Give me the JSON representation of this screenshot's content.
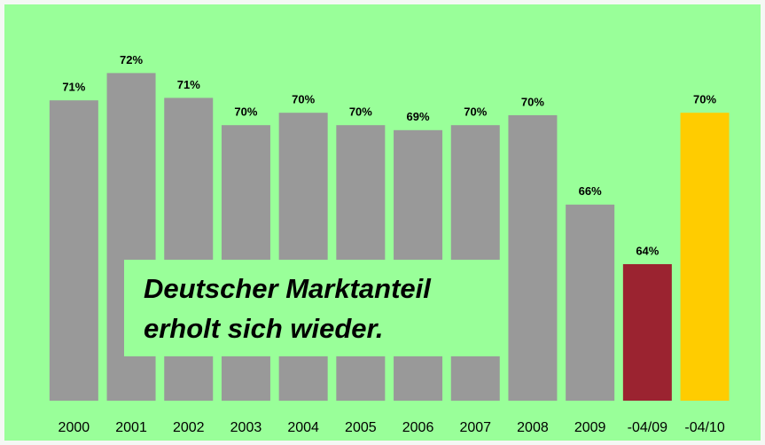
{
  "chart_data": {
    "type": "bar",
    "categories": [
      "2000",
      "2001",
      "2002",
      "2003",
      "2004",
      "2005",
      "2006",
      "2007",
      "2008",
      "2009",
      "-04/09",
      "-04/10"
    ],
    "values": [
      70.6,
      71.7,
      70.7,
      69.6,
      70.1,
      69.6,
      69.4,
      69.6,
      70.0,
      66.4,
      64.0,
      70.1
    ],
    "value_labels": [
      "71%",
      "72%",
      "71%",
      "70%",
      "70%",
      "70%",
      "69%",
      "70%",
      "70%",
      "66%",
      "64%",
      "70%"
    ],
    "colors": [
      "#999999",
      "#999999",
      "#999999",
      "#999999",
      "#999999",
      "#999999",
      "#999999",
      "#999999",
      "#999999",
      "#999999",
      "#9b2330",
      "#ffcc00"
    ],
    "ylim": [
      58.5,
      74
    ],
    "annotation": [
      "Deutscher Marktanteil",
      "erholt sich wieder."
    ]
  }
}
